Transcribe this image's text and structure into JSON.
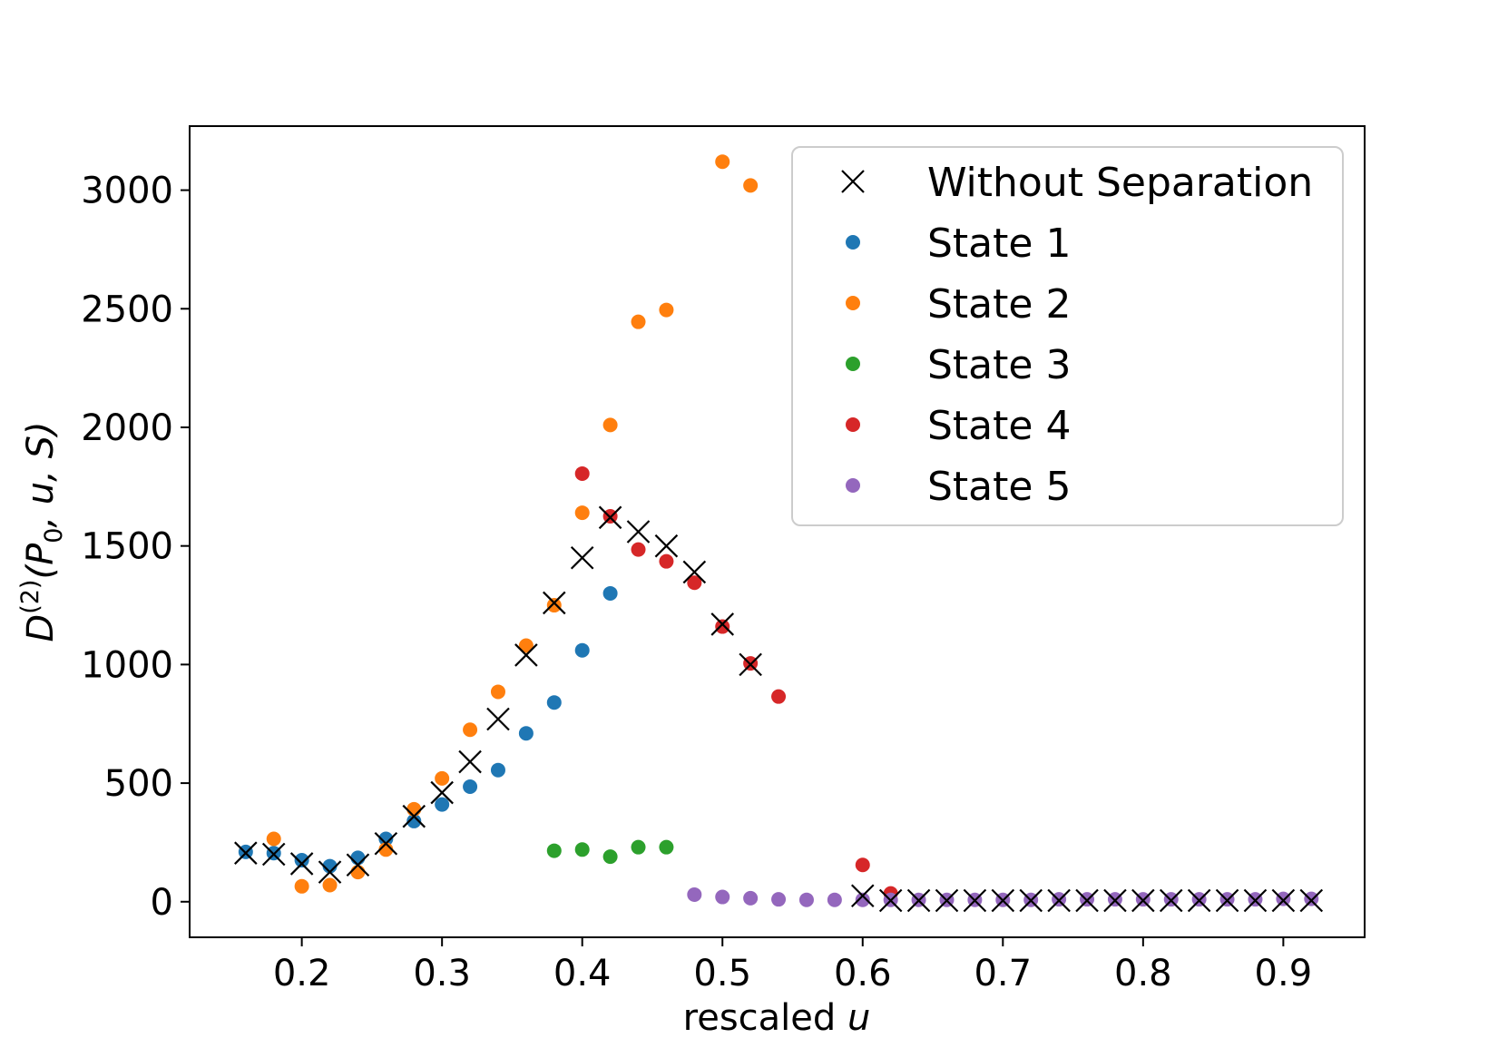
{
  "chart_data": {
    "type": "scatter",
    "title": "",
    "xlabel": {
      "text": "rescaled ",
      "var": "u"
    },
    "ylabel": {
      "base": "D",
      "sup": "(2)",
      "args": "(P",
      "sub": "0",
      "rest": ", u, S)"
    },
    "xlim": [
      0.12,
      0.958
    ],
    "ylim": [
      -150,
      3270
    ],
    "xticks": [
      0.2,
      0.3,
      0.4,
      0.5,
      0.6,
      0.7,
      0.8,
      0.9
    ],
    "xtick_labels": [
      "0.2",
      "0.3",
      "0.4",
      "0.5",
      "0.6",
      "0.7",
      "0.8",
      "0.9"
    ],
    "yticks": [
      0,
      500,
      1000,
      1500,
      2000,
      2500,
      3000
    ],
    "ytick_labels": [
      "0",
      "500",
      "1000",
      "1500",
      "2000",
      "2500",
      "3000"
    ],
    "grid": false,
    "legend_position": "top-right",
    "series": [
      {
        "name": "Without Separation",
        "marker": "x",
        "color": "#000000",
        "x": [
          0.16,
          0.18,
          0.2,
          0.22,
          0.24,
          0.26,
          0.28,
          0.3,
          0.32,
          0.34,
          0.36,
          0.38,
          0.4,
          0.42,
          0.44,
          0.46,
          0.48,
          0.5,
          0.52,
          0.6,
          0.62,
          0.64,
          0.66,
          0.68,
          0.7,
          0.72,
          0.74,
          0.76,
          0.78,
          0.8,
          0.82,
          0.84,
          0.86,
          0.88,
          0.9,
          0.92
        ],
        "y": [
          205,
          200,
          160,
          125,
          155,
          245,
          360,
          460,
          590,
          770,
          1040,
          1260,
          1450,
          1620,
          1560,
          1500,
          1390,
          1170,
          1000,
          25,
          5,
          5,
          5,
          5,
          5,
          5,
          5,
          5,
          5,
          5,
          5,
          5,
          5,
          5,
          5,
          5
        ]
      },
      {
        "name": "State 1",
        "marker": "o",
        "color": "#1f77b4",
        "x": [
          0.16,
          0.18,
          0.2,
          0.22,
          0.24,
          0.26,
          0.28,
          0.3,
          0.32,
          0.34,
          0.36,
          0.38,
          0.4,
          0.42
        ],
        "y": [
          210,
          205,
          175,
          150,
          185,
          265,
          340,
          410,
          485,
          555,
          710,
          840,
          1060,
          1300
        ]
      },
      {
        "name": "State 2",
        "marker": "o",
        "color": "#ff7f0e",
        "x": [
          0.18,
          0.2,
          0.22,
          0.24,
          0.26,
          0.28,
          0.3,
          0.32,
          0.34,
          0.36,
          0.38,
          0.4,
          0.42,
          0.44,
          0.46,
          0.5,
          0.52
        ],
        "y": [
          265,
          65,
          70,
          125,
          220,
          390,
          520,
          725,
          885,
          1080,
          1250,
          1640,
          2010,
          2445,
          2495,
          3120,
          3020
        ]
      },
      {
        "name": "State 3",
        "marker": "o",
        "color": "#2ca02c",
        "x": [
          0.38,
          0.4,
          0.42,
          0.44,
          0.46
        ],
        "y": [
          215,
          220,
          190,
          230,
          230
        ]
      },
      {
        "name": "State 4",
        "marker": "o",
        "color": "#d62728",
        "x": [
          0.4,
          0.42,
          0.44,
          0.46,
          0.48,
          0.5,
          0.52,
          0.54,
          0.6,
          0.62
        ],
        "y": [
          1805,
          1625,
          1485,
          1435,
          1345,
          1160,
          1005,
          865,
          155,
          35
        ]
      },
      {
        "name": "State 5",
        "marker": "o",
        "color": "#9467bd",
        "x": [
          0.48,
          0.5,
          0.52,
          0.54,
          0.56,
          0.58,
          0.6,
          0.62,
          0.64,
          0.66,
          0.68,
          0.7,
          0.72,
          0.74,
          0.76,
          0.78,
          0.8,
          0.82,
          0.84,
          0.86,
          0.88,
          0.9,
          0.92
        ],
        "y": [
          30,
          20,
          15,
          10,
          8,
          8,
          8,
          8,
          8,
          8,
          8,
          8,
          8,
          10,
          10,
          10,
          10,
          10,
          10,
          10,
          10,
          12,
          12
        ]
      }
    ]
  }
}
